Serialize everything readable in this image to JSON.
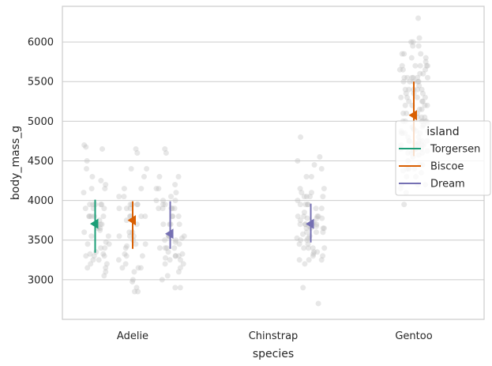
{
  "chart_data": {
    "type": "strip-pointplot",
    "xlabel": "species",
    "ylabel": "body_mass_g",
    "categories": [
      "Adelie",
      "Chinstrap",
      "Gentoo"
    ],
    "ylim": [
      2500,
      6450
    ],
    "yticks": [
      3000,
      3500,
      4000,
      4500,
      5000,
      5500,
      6000
    ],
    "grid": true,
    "legend": {
      "title": "island",
      "placement": "center-right",
      "entries": [
        {
          "label": "Torgersen",
          "color": "#1b9e77"
        },
        {
          "label": "Biscoe",
          "color": "#d95f02"
        },
        {
          "label": "Dream",
          "color": "#7570b3"
        }
      ]
    },
    "series": [
      {
        "name": "Torgersen",
        "color": "#1b9e77",
        "points": [
          {
            "category": "Adelie",
            "offset": -0.267,
            "mean": 3706,
            "ci": [
              3340,
              4010
            ]
          }
        ]
      },
      {
        "name": "Biscoe",
        "color": "#d95f02",
        "points": [
          {
            "category": "Adelie",
            "offset": 0.0,
            "mean": 3750,
            "ci": [
              3390,
              3990
            ]
          },
          {
            "category": "Gentoo",
            "offset": 0.0,
            "mean": 5076,
            "ci": [
              4560,
              5500
            ]
          }
        ]
      },
      {
        "name": "Dream",
        "color": "#7570b3",
        "points": [
          {
            "category": "Adelie",
            "offset": 0.267,
            "mean": 3580,
            "ci": [
              3390,
              3990
            ]
          },
          {
            "category": "Chinstrap",
            "offset": 0.267,
            "mean": 3705,
            "ci": [
              3470,
              3960
            ]
          }
        ]
      }
    ],
    "strip": {
      "color": "#bbbbbb",
      "groups": [
        {
          "category": "Adelie",
          "offset": -0.267,
          "values": [
            3750,
            3800,
            3250,
            3450,
            3650,
            3625,
            4675,
            3475,
            4250,
            3300,
            3700,
            3200,
            3800,
            4400,
            3700,
            3450,
            4500,
            3325,
            4200,
            3400,
            3600,
            3800,
            3950,
            3800,
            3800,
            3550,
            3200,
            3150,
            3950,
            3250,
            3900,
            3300,
            3900,
            3325,
            4150,
            3950,
            3550,
            3300,
            4650,
            3150,
            3900,
            3100,
            3050,
            3950,
            3350,
            4150,
            3400,
            4700,
            3650,
            4100,
            3700,
            4300,
            3950
          ]
        },
        {
          "category": "Adelie",
          "offset": 0.0,
          "values": [
            3400,
            3600,
            3800,
            3950,
            3800,
            3800,
            3550,
            3200,
            3150,
            3950,
            3250,
            3900,
            3300,
            3900,
            3325,
            4150,
            3950,
            3550,
            3300,
            4650,
            3150,
            3900,
            3100,
            4400,
            3000,
            4600,
            3425,
            2975,
            3450,
            4150,
            3500,
            4300,
            3450,
            4050,
            2900,
            3700,
            3550,
            3800,
            2850,
            3750,
            3150,
            4400,
            3600,
            4050,
            2850,
            3950
          ]
        },
        {
          "category": "Adelie",
          "offset": 0.267,
          "values": [
            3250,
            3900,
            3300,
            3900,
            3325,
            4150,
            3950,
            3550,
            3300,
            4650,
            3150,
            3900,
            3100,
            3050,
            3350,
            4150,
            3400,
            4100,
            3700,
            4300,
            3550,
            3800,
            2900,
            3500,
            4000,
            3700,
            4050,
            3400,
            3475,
            4200,
            3250,
            3900,
            3525,
            4000,
            3400,
            3800,
            3000,
            2900,
            3550,
            3950,
            3300,
            4600,
            3400,
            4000,
            3275,
            4300,
            3900,
            3200,
            3500,
            3700,
            3450,
            3800,
            3200,
            3550,
            3700
          ]
        },
        {
          "category": "Chinstrap",
          "offset": 0.267,
          "values": [
            3500,
            3900,
            3650,
            3525,
            3725,
            3950,
            3250,
            3750,
            4150,
            3700,
            3800,
            3775,
            3700,
            4050,
            3575,
            4050,
            3300,
            3700,
            3450,
            4400,
            3600,
            3400,
            2900,
            3800,
            3300,
            4150,
            3400,
            3800,
            3700,
            4550,
            3200,
            4300,
            3350,
            4100,
            3600,
            3900,
            3850,
            4800,
            2700,
            4500,
            3950,
            3650,
            3550,
            3500,
            3675,
            4450,
            3400,
            4300,
            3250,
            3675,
            3325,
            3950,
            3600,
            4050,
            3350,
            3450,
            3250,
            4050,
            3800,
            3525,
            3950,
            3650,
            3650,
            4000,
            3400,
            3775,
            4100,
            3775
          ]
        },
        {
          "category": "Gentoo",
          "offset": 0.0,
          "values": [
            4500,
            5700,
            4450,
            5700,
            5400,
            4550,
            4800,
            5200,
            4400,
            5150,
            4650,
            5550,
            4650,
            5850,
            4200,
            5850,
            4150,
            6300,
            4800,
            5350,
            5700,
            5000,
            4400,
            5050,
            5000,
            5100,
            4100,
            5650,
            4600,
            5550,
            5250,
            4700,
            5050,
            6050,
            5150,
            5400,
            4950,
            5250,
            4350,
            5350,
            3950,
            5700,
            4300,
            4750,
            5550,
            4900,
            4200,
            5400,
            5100,
            5300,
            4850,
            5300,
            4400,
            5000,
            4900,
            5050,
            4300,
            5000,
            4450,
            5550,
            4200,
            5300,
            4400,
            5650,
            4700,
            5700,
            4650,
            5800,
            4700,
            5550,
            4750,
            5000,
            5100,
            5200,
            4700,
            5800,
            4600,
            6000,
            4750,
            5950,
            4625,
            5450,
            4725,
            5350,
            4750,
            5600,
            4600,
            5300,
            4875,
            5550,
            4950,
            5400,
            4750,
            5650,
            4850,
            5200,
            4925,
            4875,
            4625,
            5250,
            4850,
            5600,
            4975,
            5500,
            4725,
            5500,
            4700,
            5500,
            4575,
            5500,
            5000,
            5950,
            4650,
            5500,
            4375,
            5850,
            4875,
            6000,
            4925,
            4850,
            5750,
            5200,
            5400
          ]
        }
      ]
    }
  }
}
